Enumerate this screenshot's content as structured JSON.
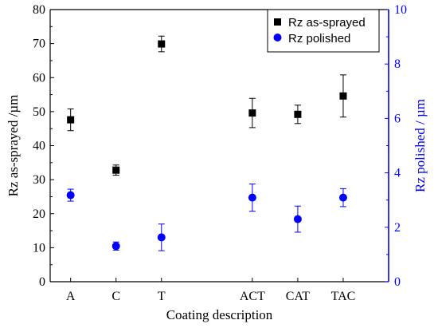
{
  "chart_data": {
    "type": "scatter",
    "categories": [
      "A",
      "C",
      "T",
      "ACT",
      "CAT",
      "TAC"
    ],
    "category_positions": [
      1,
      2,
      3,
      5,
      6,
      7
    ],
    "x_range": [
      0.55,
      8.0
    ],
    "xlabel": "Coating description",
    "ylabel_left": "Rz as-sprayed /µm",
    "ylabel_right": "Rz polished / µm",
    "ylim_left": [
      0,
      80
    ],
    "ylim_right": [
      0,
      10
    ],
    "yticks_left": [
      0,
      10,
      20,
      30,
      40,
      50,
      60,
      70,
      80
    ],
    "yticks_right": [
      0,
      2,
      4,
      6,
      8,
      10
    ],
    "grid": false,
    "legend_position": "top-right",
    "series": [
      {
        "name": "Rz as-sprayed",
        "axis": "left",
        "marker": "square",
        "color": "#000000",
        "values": [
          47.6,
          32.8,
          69.9,
          49.6,
          49.2,
          54.6
        ],
        "errors": [
          3.2,
          1.5,
          2.3,
          4.3,
          2.7,
          6.2
        ]
      },
      {
        "name": "Rz polished",
        "axis": "right",
        "marker": "circle",
        "color": "#0000FF",
        "values": [
          3.18,
          1.31,
          1.63,
          3.09,
          2.3,
          3.09
        ],
        "errors": [
          0.22,
          0.15,
          0.49,
          0.5,
          0.48,
          0.33
        ]
      }
    ]
  }
}
